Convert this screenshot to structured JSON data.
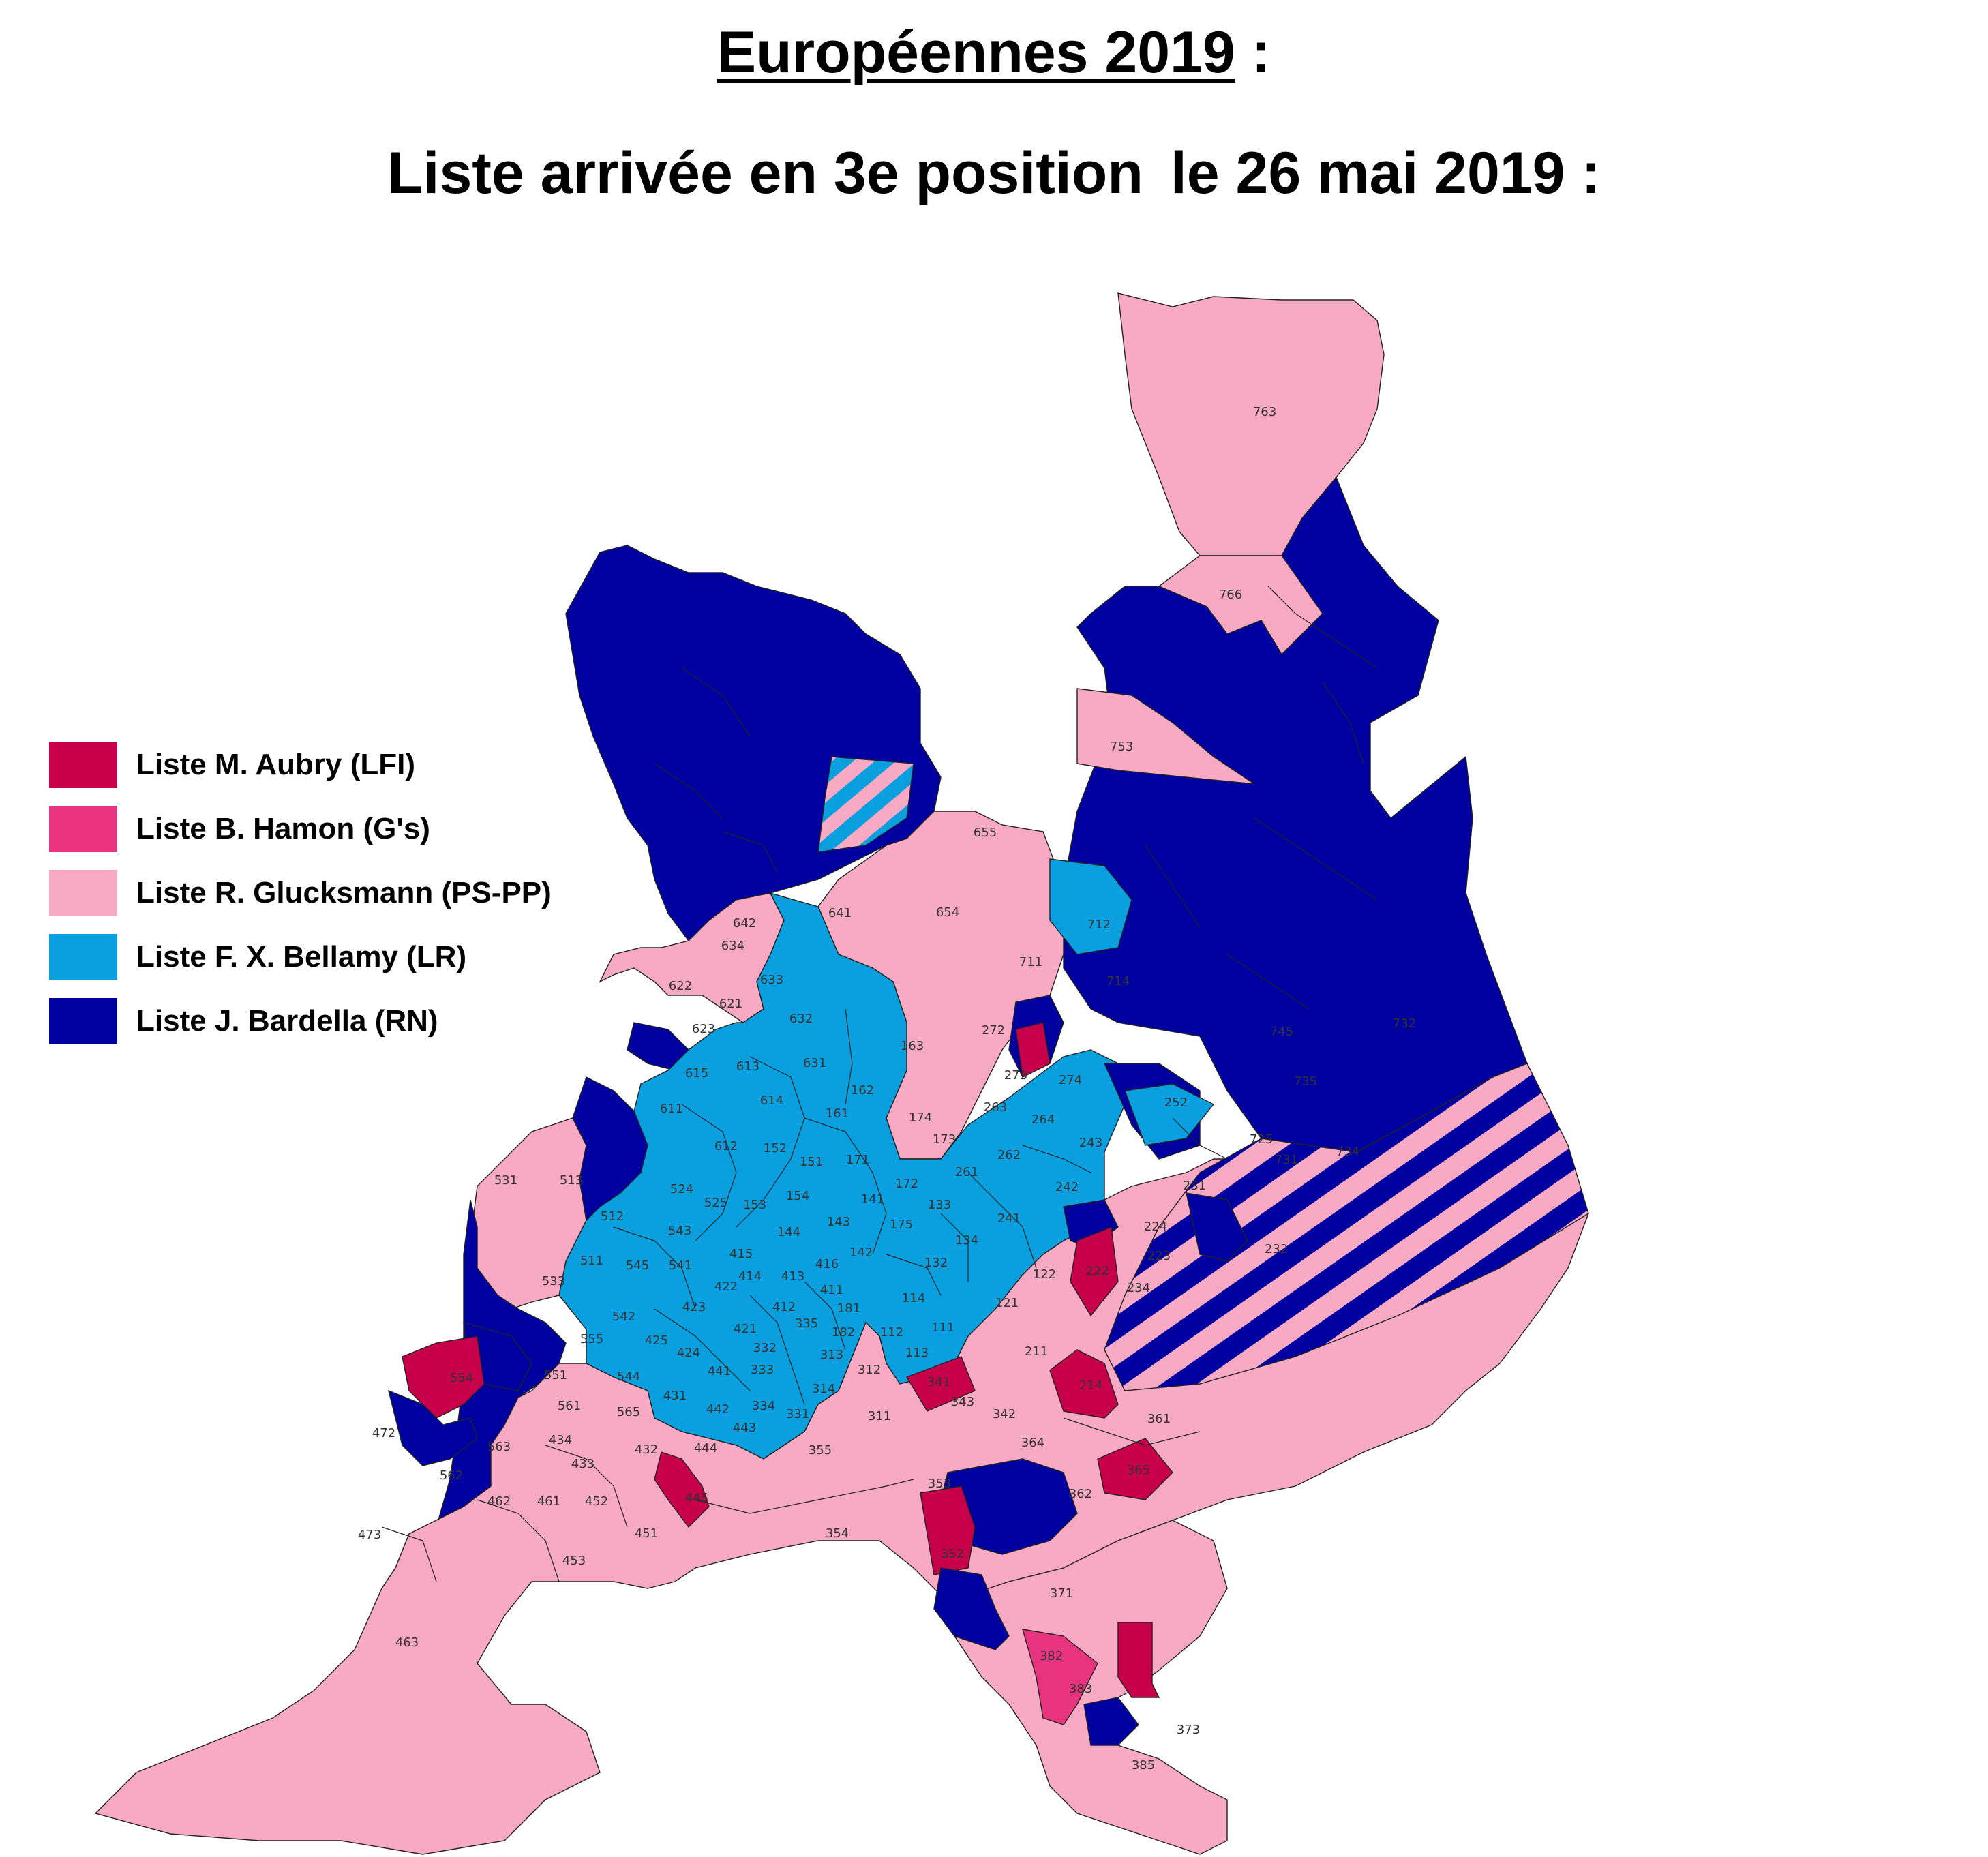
{
  "title": {
    "line1": "Européennes 2019",
    "line1_suffix": " :",
    "line2_part1": "Liste arrivée en 3e position",
    "line2_part2": "le 26 mai 2019 :"
  },
  "colors": {
    "aubry": "#c8004b",
    "hamon": "#e8337f",
    "glucksmann": "#f8a9c4",
    "bellamy": "#0aa0df",
    "bardella": "#0000a0",
    "border": "#222222"
  },
  "legend": [
    {
      "key": "aubry",
      "label": "Liste M. Aubry (LFI)"
    },
    {
      "key": "hamon",
      "label": "Liste B. Hamon (G's)"
    },
    {
      "key": "glucksmann",
      "label": "Liste R. Glucksmann (PS-PP)"
    },
    {
      "key": "bellamy",
      "label": "Liste F. X. Bellamy (LR)"
    },
    {
      "key": "bardella",
      "label": "Liste J. Bardella (RN)"
    }
  ],
  "zones": [
    {
      "id": "763",
      "party": "glucksmann"
    },
    {
      "id": "766",
      "party": "glucksmann"
    },
    {
      "id": "753",
      "party": "glucksmann"
    },
    {
      "id": "655",
      "party": "glucksmann"
    },
    {
      "id": "654",
      "party": "glucksmann"
    },
    {
      "id": "712",
      "party": "bellamy"
    },
    {
      "id": "711",
      "party": "glucksmann"
    },
    {
      "id": "714",
      "party": "glucksmann"
    },
    {
      "id": "642",
      "party": "glucksmann"
    },
    {
      "id": "641",
      "party": "bellamy"
    },
    {
      "id": "634",
      "party": "glucksmann"
    },
    {
      "id": "633",
      "party": "glucksmann"
    },
    {
      "id": "622",
      "party": "glucksmann"
    },
    {
      "id": "621",
      "party": "glucksmann"
    },
    {
      "id": "623",
      "party": "glucksmann"
    },
    {
      "id": "632",
      "party": "bellamy"
    },
    {
      "id": "615",
      "party": "bellamy"
    },
    {
      "id": "613",
      "party": "bellamy"
    },
    {
      "id": "631",
      "party": "bellamy"
    },
    {
      "id": "614",
      "party": "bellamy"
    },
    {
      "id": "611",
      "party": "bellamy"
    },
    {
      "id": "612",
      "party": "bellamy"
    },
    {
      "id": "163",
      "party": "bellamy"
    },
    {
      "id": "162",
      "party": "bellamy"
    },
    {
      "id": "161",
      "party": "bellamy"
    },
    {
      "id": "152",
      "party": "bellamy"
    },
    {
      "id": "151",
      "party": "bellamy"
    },
    {
      "id": "171",
      "party": "bellamy"
    },
    {
      "id": "174",
      "party": "bellamy"
    },
    {
      "id": "173",
      "party": "glucksmann"
    },
    {
      "id": "272",
      "party": "glucksmann"
    },
    {
      "id": "273",
      "party": "aubry"
    },
    {
      "id": "274",
      "party": "bellamy"
    },
    {
      "id": "263",
      "party": "bellamy"
    },
    {
      "id": "264",
      "party": "bellamy"
    },
    {
      "id": "262",
      "party": "bellamy"
    },
    {
      "id": "261",
      "party": "bellamy"
    },
    {
      "id": "243",
      "party": "bellamy"
    },
    {
      "id": "242",
      "party": "bellamy"
    },
    {
      "id": "241",
      "party": "bellamy"
    },
    {
      "id": "252",
      "party": "bellamy"
    },
    {
      "id": "745",
      "party": "glucksmann"
    },
    {
      "id": "732",
      "party": "glucksmann"
    },
    {
      "id": "735",
      "party": "glucksmann"
    },
    {
      "id": "725",
      "party": "glucksmann"
    },
    {
      "id": "731",
      "party": "glucksmann"
    },
    {
      "id": "734",
      "party": "glucksmann"
    },
    {
      "id": "231",
      "party": "glucksmann"
    },
    {
      "id": "224",
      "party": "glucksmann"
    },
    {
      "id": "223",
      "party": "glucksmann"
    },
    {
      "id": "232",
      "party": "glucksmann"
    },
    {
      "id": "234",
      "party": "glucksmann"
    },
    {
      "id": "222",
      "party": "aubry"
    },
    {
      "id": "531",
      "party": "glucksmann"
    },
    {
      "id": "513",
      "party": "glucksmann"
    },
    {
      "id": "524",
      "party": "glucksmann"
    },
    {
      "id": "525",
      "party": "bellamy"
    },
    {
      "id": "153",
      "party": "bellamy"
    },
    {
      "id": "154",
      "party": "bellamy"
    },
    {
      "id": "144",
      "party": "glucksmann"
    },
    {
      "id": "143",
      "party": "bellamy"
    },
    {
      "id": "141",
      "party": "glucksmann"
    },
    {
      "id": "172",
      "party": "glucksmann"
    },
    {
      "id": "175",
      "party": "glucksmann"
    },
    {
      "id": "133",
      "party": "glucksmann"
    },
    {
      "id": "132",
      "party": "glucksmann"
    },
    {
      "id": "134",
      "party": "bellamy"
    },
    {
      "id": "122",
      "party": "glucksmann"
    },
    {
      "id": "121",
      "party": "glucksmann"
    },
    {
      "id": "512",
      "party": "bellamy"
    },
    {
      "id": "543",
      "party": "bellamy"
    },
    {
      "id": "511",
      "party": "bellamy"
    },
    {
      "id": "545",
      "party": "bellamy"
    },
    {
      "id": "541",
      "party": "bellamy"
    },
    {
      "id": "415",
      "party": "bellamy"
    },
    {
      "id": "416",
      "party": "bellamy"
    },
    {
      "id": "142",
      "party": "bellamy"
    },
    {
      "id": "414",
      "party": "bellamy"
    },
    {
      "id": "413",
      "party": "bellamy"
    },
    {
      "id": "411",
      "party": "glucksmann"
    },
    {
      "id": "533",
      "party": "glucksmann"
    },
    {
      "id": "423",
      "party": "bellamy"
    },
    {
      "id": "422",
      "party": "bellamy"
    },
    {
      "id": "412",
      "party": "bellamy"
    },
    {
      "id": "181",
      "party": "glucksmann"
    },
    {
      "id": "114",
      "party": "bellamy"
    },
    {
      "id": "542",
      "party": "glucksmann"
    },
    {
      "id": "425",
      "party": "glucksmann"
    },
    {
      "id": "555",
      "party": "bellamy"
    },
    {
      "id": "421",
      "party": "bellamy"
    },
    {
      "id": "335",
      "party": "bellamy"
    },
    {
      "id": "182",
      "party": "bellamy"
    },
    {
      "id": "112",
      "party": "glucksmann"
    },
    {
      "id": "111",
      "party": "bellamy"
    },
    {
      "id": "424",
      "party": "bellamy"
    },
    {
      "id": "332",
      "party": "bellamy"
    },
    {
      "id": "313",
      "party": "bellamy"
    },
    {
      "id": "113",
      "party": "glucksmann"
    },
    {
      "id": "211",
      "party": "glucksmann"
    },
    {
      "id": "554",
      "party": "aubry"
    },
    {
      "id": "551",
      "party": "glucksmann"
    },
    {
      "id": "544",
      "party": "glucksmann"
    },
    {
      "id": "441",
      "party": "bellamy"
    },
    {
      "id": "333",
      "party": "bellamy"
    },
    {
      "id": "312",
      "party": "glucksmann"
    },
    {
      "id": "341",
      "party": "aubry"
    },
    {
      "id": "214",
      "party": "aubry"
    },
    {
      "id": "431",
      "party": "bellamy"
    },
    {
      "id": "314",
      "party": "bellamy"
    },
    {
      "id": "561",
      "party": "glucksmann"
    },
    {
      "id": "565",
      "party": "glucksmann"
    },
    {
      "id": "442",
      "party": "bellamy"
    },
    {
      "id": "334",
      "party": "bellamy"
    },
    {
      "id": "343",
      "party": "glucksmann"
    },
    {
      "id": "342",
      "party": "glucksmann"
    },
    {
      "id": "331",
      "party": "bellamy"
    },
    {
      "id": "311",
      "party": "glucksmann"
    },
    {
      "id": "361",
      "party": "glucksmann"
    },
    {
      "id": "472",
      "party": "glucksmann"
    },
    {
      "id": "443",
      "party": "bellamy"
    },
    {
      "id": "563",
      "party": "glucksmann"
    },
    {
      "id": "434",
      "party": "glucksmann"
    },
    {
      "id": "432",
      "party": "glucksmann"
    },
    {
      "id": "444",
      "party": "glucksmann"
    },
    {
      "id": "355",
      "party": "glucksmann"
    },
    {
      "id": "364",
      "party": "glucksmann"
    },
    {
      "id": "562",
      "party": "glucksmann"
    },
    {
      "id": "433",
      "party": "glucksmann"
    },
    {
      "id": "365",
      "party": "aubry"
    },
    {
      "id": "353",
      "party": "glucksmann"
    },
    {
      "id": "362",
      "party": "glucksmann"
    },
    {
      "id": "462",
      "party": "glucksmann"
    },
    {
      "id": "461",
      "party": "glucksmann"
    },
    {
      "id": "452",
      "party": "glucksmann"
    },
    {
      "id": "445",
      "party": "aubry"
    },
    {
      "id": "473",
      "party": "glucksmann"
    },
    {
      "id": "451",
      "party": "glucksmann"
    },
    {
      "id": "354",
      "party": "glucksmann"
    },
    {
      "id": "453",
      "party": "glucksmann"
    },
    {
      "id": "352",
      "party": "aubry"
    },
    {
      "id": "371",
      "party": "glucksmann"
    },
    {
      "id": "463",
      "party": "glucksmann"
    },
    {
      "id": "382",
      "party": "hamon"
    },
    {
      "id": "383",
      "party": "glucksmann"
    },
    {
      "id": "373",
      "party": "glucksmann"
    },
    {
      "id": "385",
      "party": "glucksmann"
    }
  ]
}
